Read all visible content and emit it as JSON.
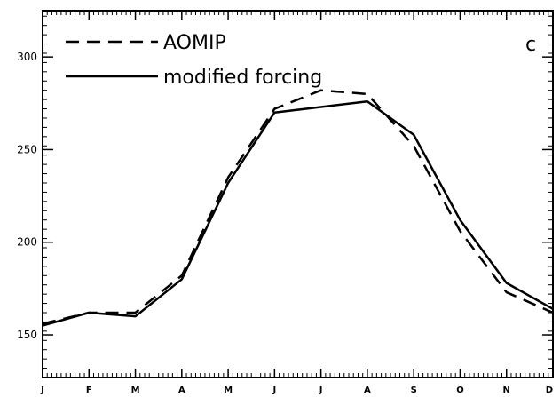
{
  "chart_data": {
    "type": "line",
    "categories": [
      "J",
      "F",
      "M",
      "A",
      "M",
      "J",
      "J",
      "A",
      "S",
      "O",
      "N",
      "D"
    ],
    "panel_label": "c",
    "ylim": [
      127,
      325
    ],
    "yticks": [
      150,
      200,
      250,
      300
    ],
    "grid": false,
    "legend_position": "top-left",
    "series": [
      {
        "name": "AOMIP",
        "style": "dashed",
        "values": [
          156,
          162,
          162,
          182,
          235,
          272,
          282,
          280,
          252,
          206,
          173,
          162
        ]
      },
      {
        "name": "modified forcing",
        "style": "solid",
        "values": [
          155,
          162,
          160,
          180,
          232,
          270,
          273,
          276,
          258,
          212,
          178,
          164
        ]
      }
    ]
  }
}
